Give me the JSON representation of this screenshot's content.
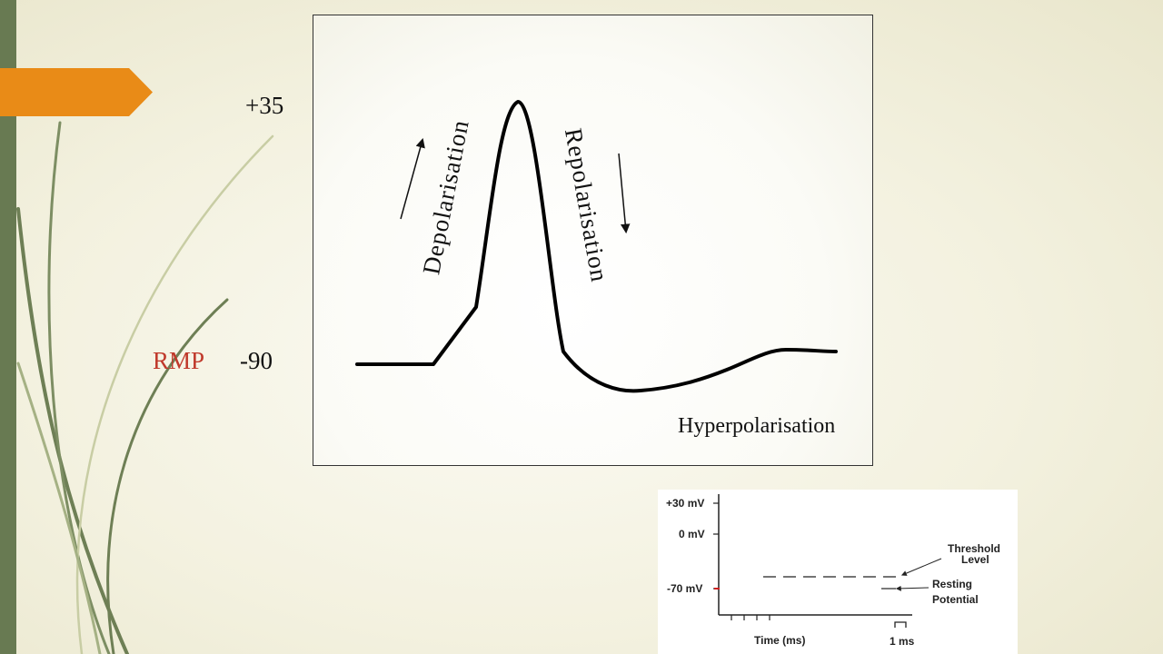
{
  "main": {
    "y_top_label": "+35",
    "y_bottom_label": "-90",
    "rmp_label": "RMP",
    "depolarisation_label": "Depolarisation",
    "repolarisation_label": "Repolarisation",
    "hyperpolarisation_label": "Hyperpolarisation"
  },
  "mini": {
    "y_labels": [
      "+30 mV",
      "0 mV",
      "-70 mV"
    ],
    "threshold_label": "Threshold Level",
    "threshold_line1": "Threshold",
    "threshold_line2": "Level",
    "resting_line1": "Resting",
    "resting_line2": "Potential",
    "xlabel": "Time (ms)",
    "scale_label": "1 ms"
  },
  "colors": {
    "accent_tab": "#e98b17",
    "left_bar": "#687a52",
    "rmp": "#c0392b"
  }
}
